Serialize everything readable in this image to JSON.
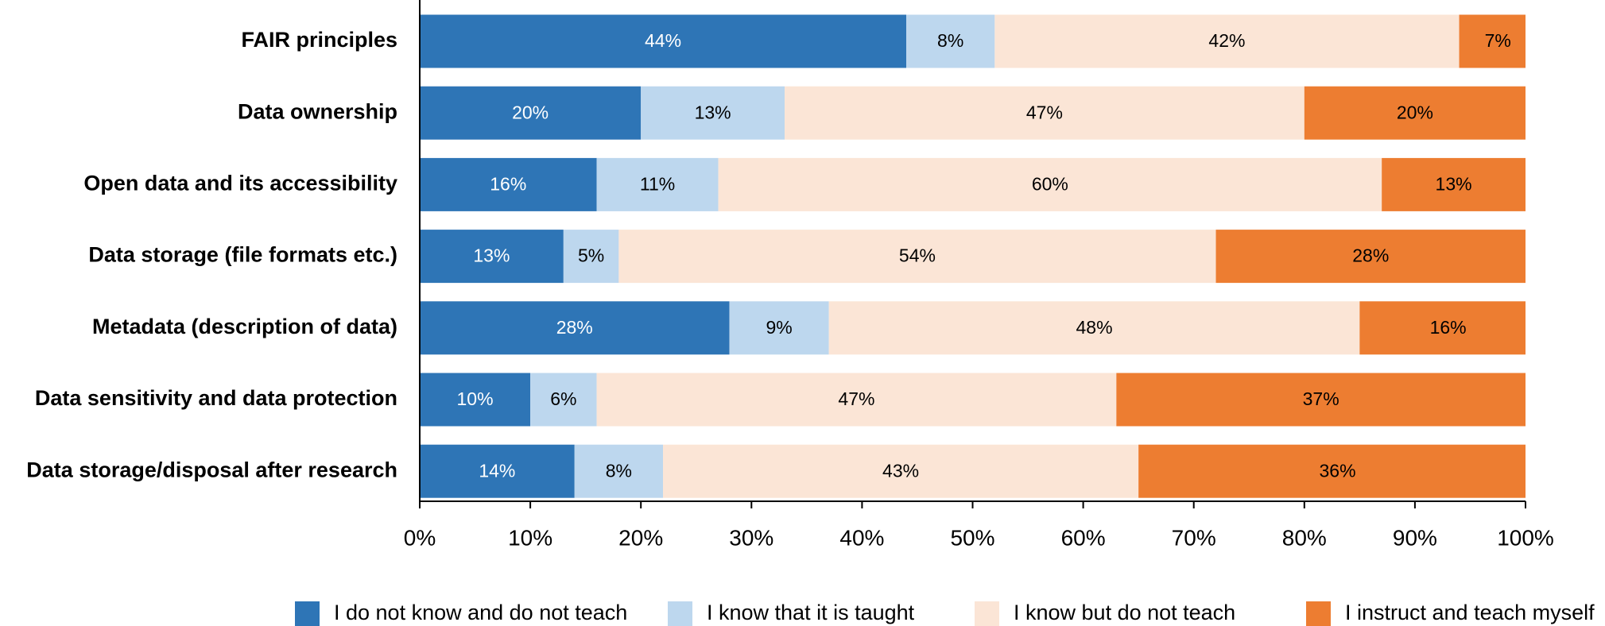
{
  "chart_data": {
    "type": "stacked_barh",
    "categories": [
      "FAIR principles",
      "Data ownership",
      "Open data and its accessibility",
      "Data storage (file formats etc.)",
      "Metadata (description of data)",
      "Data sensitivity and data protection",
      "Data storage/disposal after research"
    ],
    "series": [
      {
        "name": "I do not know and do not teach",
        "color": "#2e75b6",
        "label_color": "#ffffff",
        "values": [
          44,
          20,
          16,
          13,
          28,
          10,
          14
        ],
        "value_labels": [
          "44%",
          "20%",
          "16%",
          "13%",
          "28%",
          "10%",
          "14%"
        ]
      },
      {
        "name": "I know that it is taught",
        "color": "#bdd7ee",
        "label_color": "#000000",
        "values": [
          8,
          13,
          11,
          5,
          9,
          6,
          8
        ],
        "value_labels": [
          "8%",
          "13%",
          "11%",
          "5%",
          "9%",
          "6%",
          "8%"
        ]
      },
      {
        "name": "I know but do not teach",
        "color": "#fbe5d6",
        "label_color": "#000000",
        "values": [
          42,
          47,
          60,
          54,
          48,
          47,
          43
        ],
        "value_labels": [
          "42%",
          "47%",
          "60%",
          "54%",
          "48%",
          "47%",
          "43%"
        ]
      },
      {
        "name": "I instruct and teach myself",
        "color": "#ed7d31",
        "label_color": "#000000",
        "values": [
          7,
          20,
          13,
          28,
          16,
          37,
          36
        ],
        "value_labels": [
          "7%",
          "20%",
          "13%",
          "28%",
          "16%",
          "37%",
          "36%"
        ]
      }
    ],
    "xlim": [
      0,
      100
    ],
    "xticks": [
      {
        "value": 0,
        "label": "0%"
      },
      {
        "value": 10,
        "label": "10%"
      },
      {
        "value": 20,
        "label": "20%"
      },
      {
        "value": 30,
        "label": "30%"
      },
      {
        "value": 40,
        "label": "40%"
      },
      {
        "value": 50,
        "label": "50%"
      },
      {
        "value": 60,
        "label": "60%"
      },
      {
        "value": 70,
        "label": "70%"
      },
      {
        "value": 80,
        "label": "80%"
      },
      {
        "value": 90,
        "label": "90%"
      },
      {
        "value": 100,
        "label": "100%"
      }
    ],
    "legend": "bottom"
  }
}
